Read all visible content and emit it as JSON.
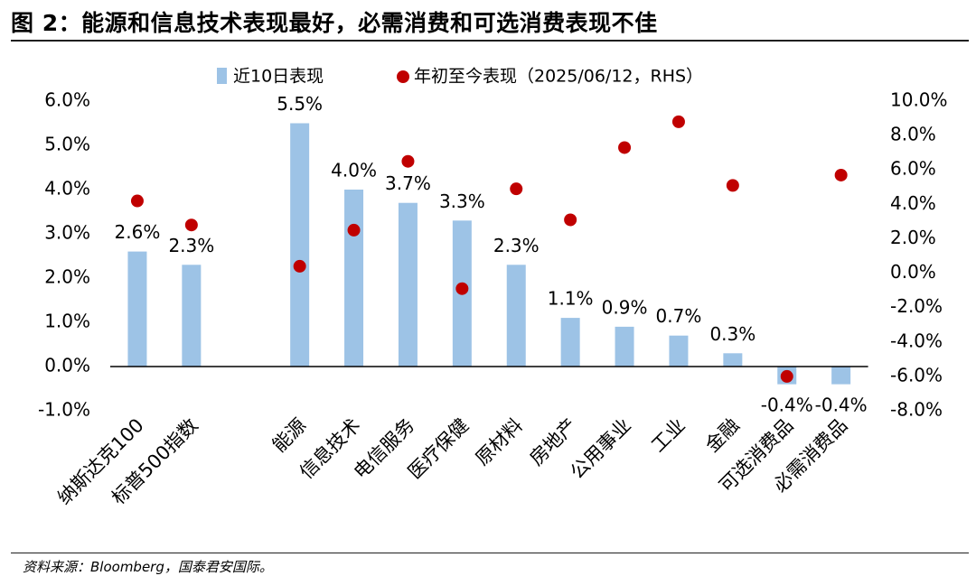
{
  "header": {
    "title": "图 2：能源和信息技术表现最好，必需消费和可选消费表现不佳"
  },
  "footer": {
    "source": "资料来源：Bloomberg，国泰君安国际。"
  },
  "chart_data": {
    "type": "bar",
    "categories": [
      "纳斯达克100",
      "标普500指数",
      "",
      "能源",
      "信息技术",
      "电信服务",
      "医疗保健",
      "原材料",
      "房地产",
      "公用事业",
      "工业",
      "金融",
      "可选消费品",
      "必需消费品"
    ],
    "series": [
      {
        "name": "近10日表现",
        "kind": "bar",
        "axis": "left",
        "color": "#9DC3E6",
        "values": [
          2.6,
          2.3,
          null,
          5.5,
          4.0,
          3.7,
          3.3,
          2.3,
          1.1,
          0.9,
          0.7,
          0.3,
          -0.4,
          -0.4
        ],
        "labels": [
          "2.6%",
          "2.3%",
          "",
          "5.5%",
          "4.0%",
          "3.7%",
          "3.3%",
          "2.3%",
          "1.1%",
          "0.9%",
          "0.7%",
          "0.3%",
          "-0.4%",
          "-0.4%"
        ]
      },
      {
        "name": "年初至今表现（2025/06/12，RHS）",
        "kind": "scatter",
        "axis": "right",
        "color": "#C00000",
        "values": [
          4.2,
          2.8,
          null,
          0.4,
          2.5,
          6.5,
          -0.9,
          4.9,
          3.1,
          7.3,
          8.8,
          5.1,
          -6.0,
          5.7
        ]
      }
    ],
    "left_axis": {
      "ylim": [
        -1.0,
        6.0
      ],
      "ticks": [
        -1.0,
        0.0,
        1.0,
        2.0,
        3.0,
        4.0,
        5.0,
        6.0
      ],
      "tick_labels": [
        "-1.0%",
        "0.0%",
        "1.0%",
        "2.0%",
        "3.0%",
        "4.0%",
        "5.0%",
        "6.0%"
      ]
    },
    "right_axis": {
      "ylim": [
        -8.0,
        10.0
      ],
      "ticks": [
        -8.0,
        -6.0,
        -4.0,
        -2.0,
        0.0,
        2.0,
        4.0,
        6.0,
        8.0,
        10.0
      ],
      "tick_labels": [
        "-8.0%",
        "-6.0%",
        "-4.0%",
        "-2.0%",
        "0.0%",
        "2.0%",
        "4.0%",
        "6.0%",
        "8.0%",
        "10.0%"
      ]
    },
    "legend_position": "top",
    "grid": false
  }
}
